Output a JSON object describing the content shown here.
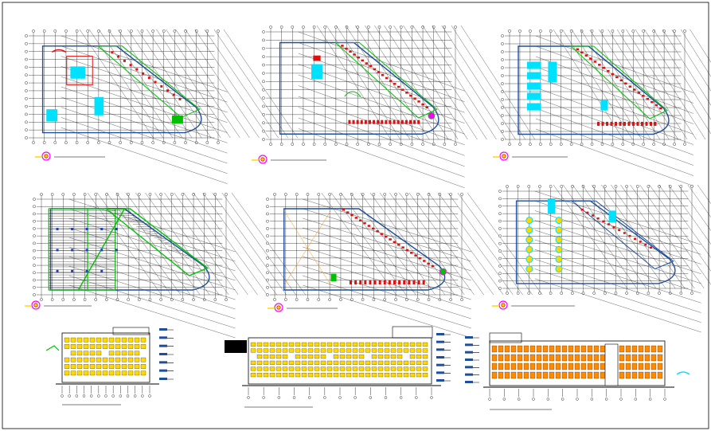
{
  "sheet": {
    "background": "#ffffff",
    "colors": {
      "line": "#000000",
      "wall": "#1f4e9c",
      "accent_red": "#e01010",
      "accent_cyan": "#00e0ff",
      "accent_green": "#00c000",
      "accent_yellow": "#ffd800",
      "accent_orange": "#ff8c00",
      "accent_magenta": "#ff00ff",
      "title_underline": "#bdbdbd"
    }
  },
  "plans": [
    {
      "id": "plan-1",
      "kind": "floor-plan",
      "fill": "full"
    },
    {
      "id": "plan-2",
      "kind": "floor-plan",
      "fill": "red-wing"
    },
    {
      "id": "plan-3",
      "kind": "floor-plan",
      "fill": "cyan-blocks"
    },
    {
      "id": "plan-4",
      "kind": "roof-plan",
      "fill": "hatched"
    },
    {
      "id": "plan-5",
      "kind": "floor-plan",
      "fill": "outline"
    },
    {
      "id": "plan-6",
      "kind": "floor-plan",
      "fill": "parking"
    }
  ],
  "elevations": [
    {
      "id": "elevation-1",
      "kind": "front-elevation",
      "fill": "yellow"
    },
    {
      "id": "elevation-2",
      "kind": "long-elevation",
      "fill": "yellow"
    },
    {
      "id": "elevation-3",
      "kind": "side-elevation",
      "fill": "orange"
    }
  ]
}
